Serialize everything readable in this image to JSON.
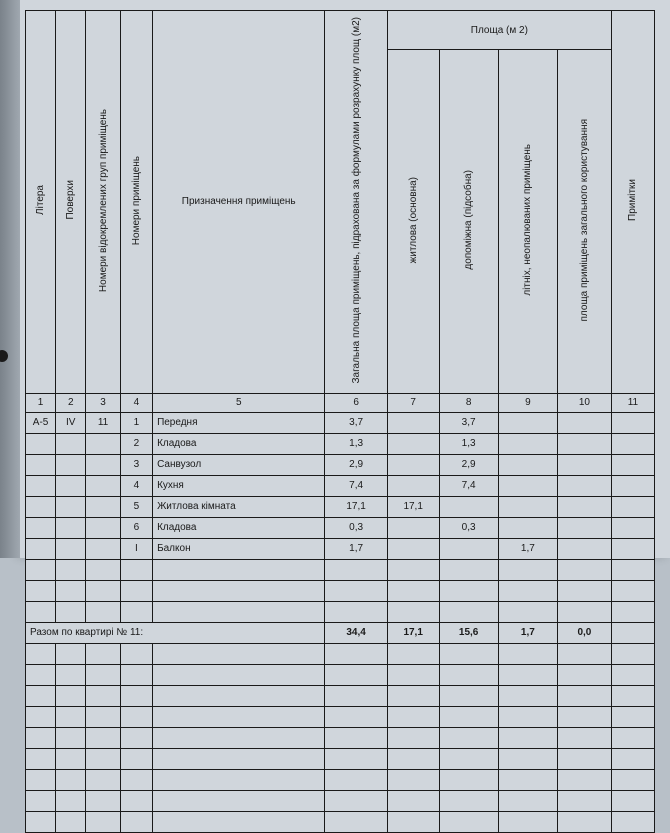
{
  "header": {
    "col1": "Літера",
    "col2": "Поверхи",
    "col3": "Номери відокремлених груп приміщень",
    "col4": "Номери приміщень",
    "col5": "Призначення приміщень",
    "col6": "Загальна площа приміщень, підрахована за формулами розрахунку площ (м2)",
    "area_group": "Площа (м 2)",
    "col7": "житлова (основна)",
    "col8": "допоміжна (підсобна)",
    "col9": "літніх, неопалюваних приміщень",
    "col10": "площа приміщень загального користування",
    "col11": "Примітки"
  },
  "numrow": {
    "n1": "1",
    "n2": "2",
    "n3": "3",
    "n4": "4",
    "n5": "5",
    "n6": "6",
    "n7": "7",
    "n8": "8",
    "n9": "9",
    "n10": "10",
    "n11": "11"
  },
  "meta": {
    "litera": "А-5",
    "floor": "IV",
    "group": "11"
  },
  "rows": [
    {
      "num": "1",
      "name": "Передня",
      "c6": "3,7",
      "c7": "",
      "c8": "3,7",
      "c9": "",
      "c10": ""
    },
    {
      "num": "2",
      "name": "Кладова",
      "c6": "1,3",
      "c7": "",
      "c8": "1,3",
      "c9": "",
      "c10": ""
    },
    {
      "num": "3",
      "name": "Санвузол",
      "c6": "2,9",
      "c7": "",
      "c8": "2,9",
      "c9": "",
      "c10": ""
    },
    {
      "num": "4",
      "name": "Кухня",
      "c6": "7,4",
      "c7": "",
      "c8": "7,4",
      "c9": "",
      "c10": ""
    },
    {
      "num": "5",
      "name": "Житлова кімната",
      "c6": "17,1",
      "c7": "17,1",
      "c8": "",
      "c9": "",
      "c10": ""
    },
    {
      "num": "6",
      "name": "Кладова",
      "c6": "0,3",
      "c7": "",
      "c8": "0,3",
      "c9": "",
      "c10": ""
    },
    {
      "num": "I",
      "name": "Балкон",
      "c6": "1,7",
      "c7": "",
      "c8": "",
      "c9": "1,7",
      "c10": ""
    }
  ],
  "total": {
    "label": "Разом по квартирі № 11:",
    "c6": "34,4",
    "c7": "17,1",
    "c8": "15,6",
    "c9": "1,7",
    "c10": "0,0"
  }
}
